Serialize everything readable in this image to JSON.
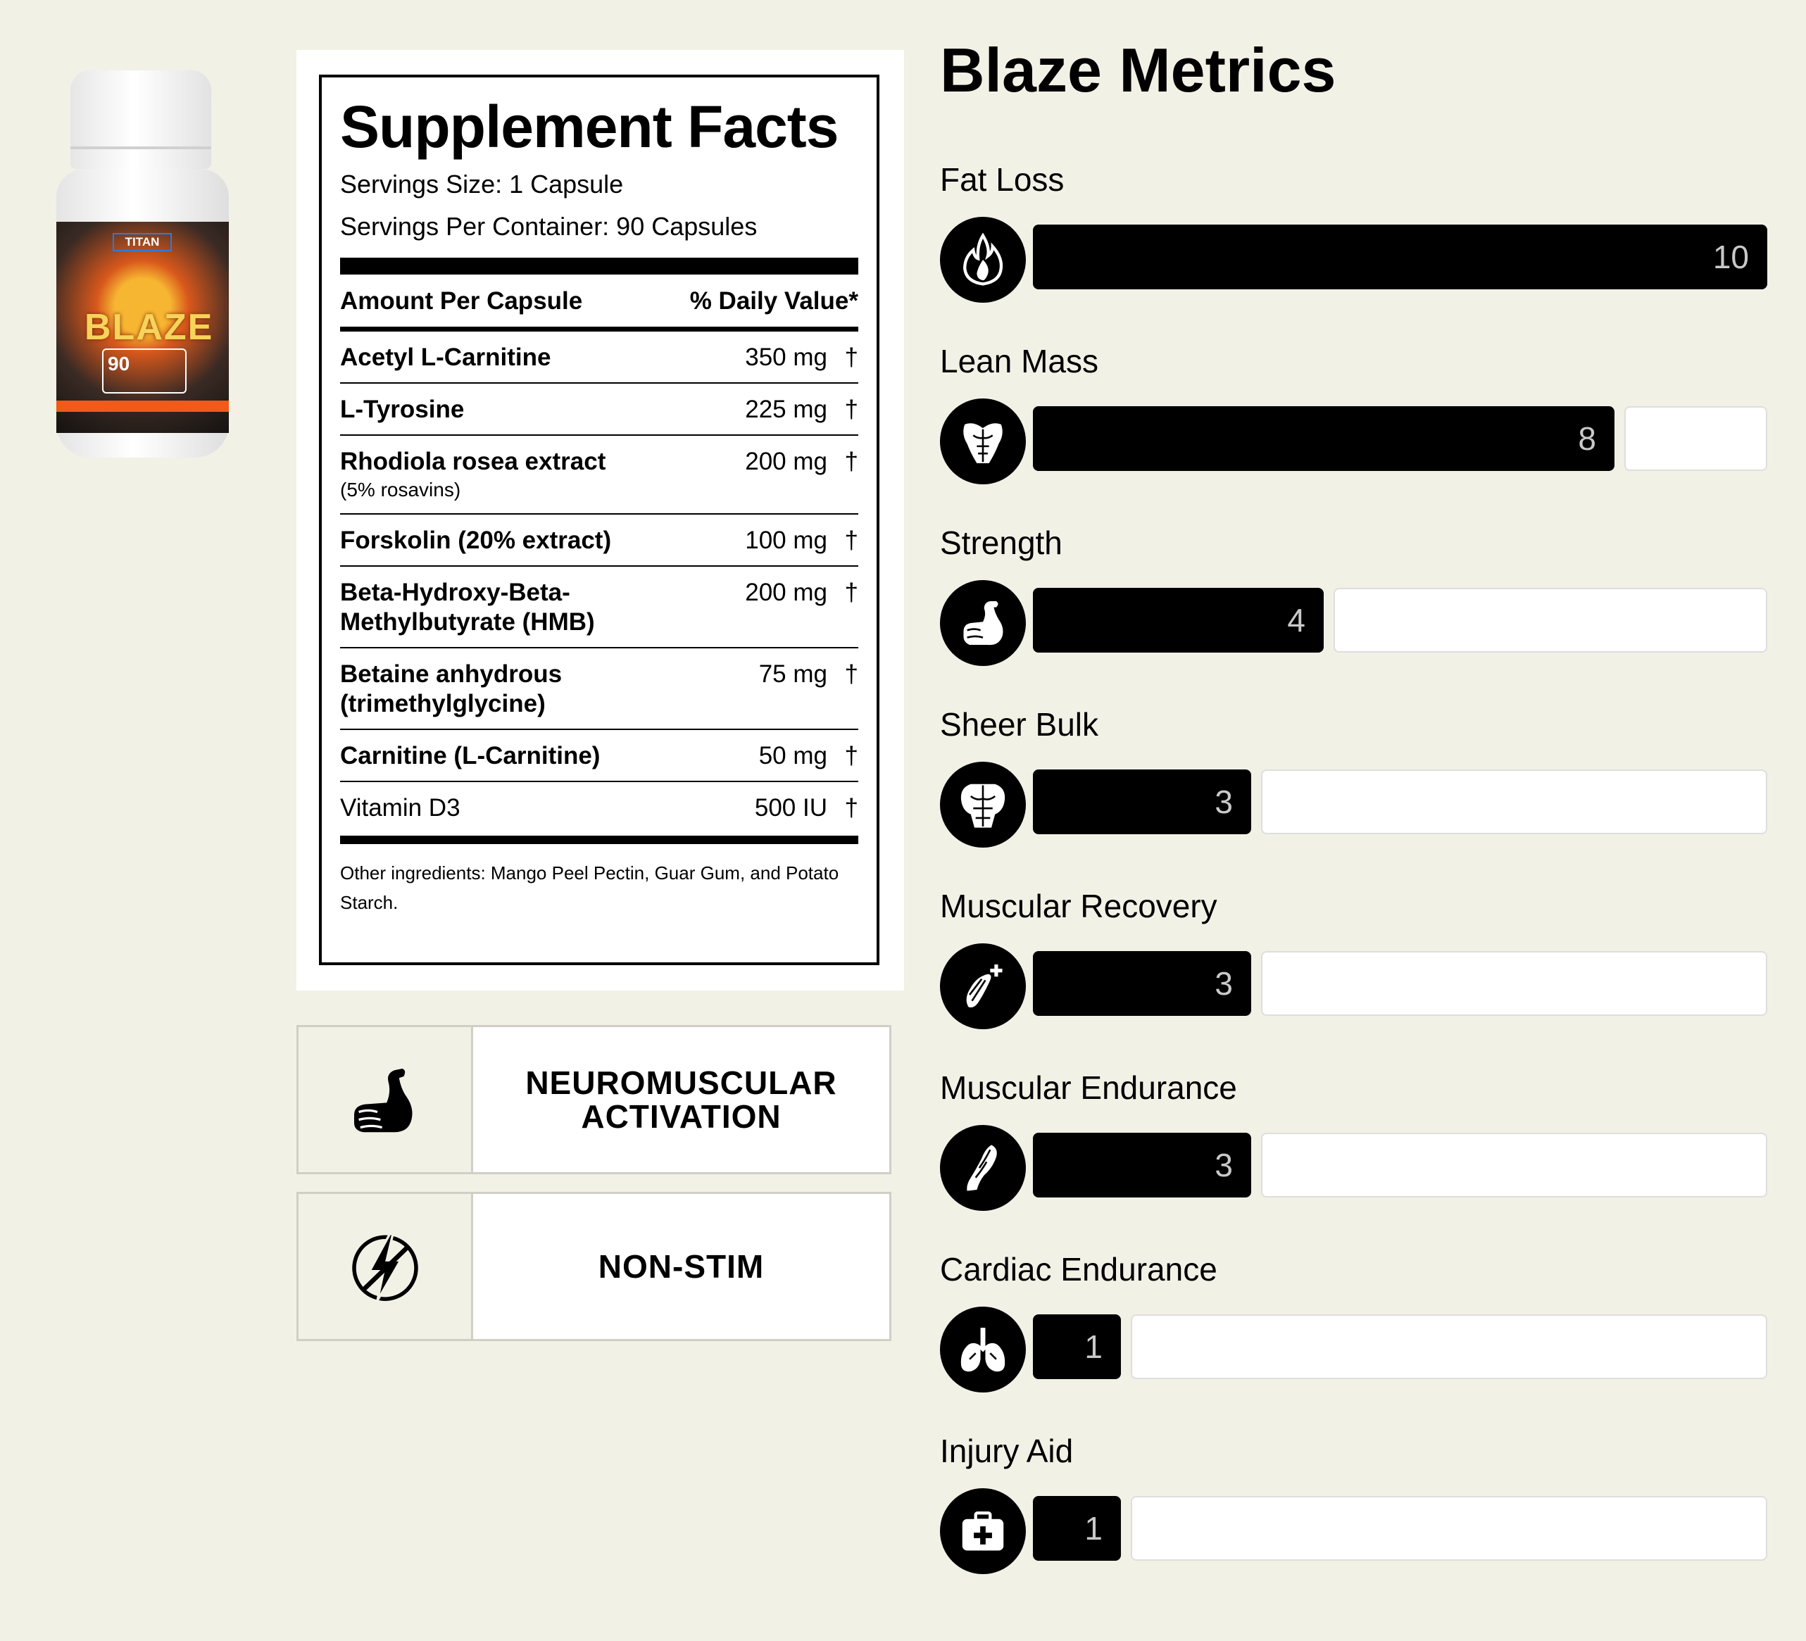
{
  "product": {
    "bottle_brand": "TITAN",
    "bottle_name": "BLAZE",
    "bottle_count": "90"
  },
  "facts": {
    "title": "Supplement Facts",
    "serving_size": "Servings Size: 1 Capsule",
    "servings_per_container": "Servings Per Container: 90 Capsules",
    "col_amount": "Amount Per Capsule",
    "col_dv": "% Daily Value*",
    "ingredients": [
      {
        "name": "Acetyl L-Carnitine",
        "note": "",
        "amount": "350 mg",
        "dv": "†"
      },
      {
        "name": "L-Tyrosine",
        "note": "",
        "amount": "225 mg",
        "dv": "†"
      },
      {
        "name": "Rhodiola rosea extract",
        "note": "(5% rosavins)",
        "amount": "200 mg",
        "dv": "†"
      },
      {
        "name": "Forskolin (20% extract)",
        "note": "",
        "amount": "100 mg",
        "dv": "†"
      },
      {
        "name": "Beta-Hydroxy-Beta-",
        "name2": "Methylbutyrate (HMB)",
        "note": "",
        "amount": "200 mg",
        "dv": "†"
      },
      {
        "name": "Betaine anhydrous",
        "name2": "(trimethylglycine)",
        "note": "",
        "amount": "75 mg",
        "dv": "†"
      },
      {
        "name": "Carnitine (L-Carnitine)",
        "note": "",
        "amount": "50 mg",
        "dv": "†"
      },
      {
        "name": "Vitamin D3",
        "note": "",
        "amount": "500 IU",
        "dv": "†",
        "plain": true
      }
    ],
    "other_ingredients": "Other ingredients: Mango Peel Pectin, Guar Gum, and Potato Starch."
  },
  "features": [
    {
      "line1": "NEUROMUSCULAR",
      "line2": "ACTIVATION",
      "icon": "flexed-arm-icon"
    },
    {
      "line1": "NON-STIM",
      "line2": "",
      "icon": "no-lightning-icon"
    }
  ],
  "metrics": {
    "title": "Blaze Metrics",
    "max": 10,
    "items": [
      {
        "label": "Fat Loss",
        "value": 10,
        "display": "10",
        "icon": "flame-icon"
      },
      {
        "label": "Lean Mass",
        "value": 8,
        "display": "8",
        "icon": "torso-icon"
      },
      {
        "label": "Strength",
        "value": 4,
        "display": "4",
        "icon": "bicep-icon"
      },
      {
        "label": "Sheer Bulk",
        "value": 3,
        "display": "3",
        "icon": "back-muscles-icon"
      },
      {
        "label": "Muscular Recovery",
        "value": 3,
        "display": "3",
        "icon": "muscle-plus-icon"
      },
      {
        "label": "Muscular Endurance",
        "value": 3,
        "display": "3",
        "icon": "leg-muscle-icon"
      },
      {
        "label": "Cardiac Endurance",
        "value": 1,
        "display": "1",
        "icon": "lungs-icon"
      },
      {
        "label": "Injury Aid",
        "value": 1,
        "display": "1",
        "icon": "first-aid-kit-icon"
      }
    ]
  }
}
